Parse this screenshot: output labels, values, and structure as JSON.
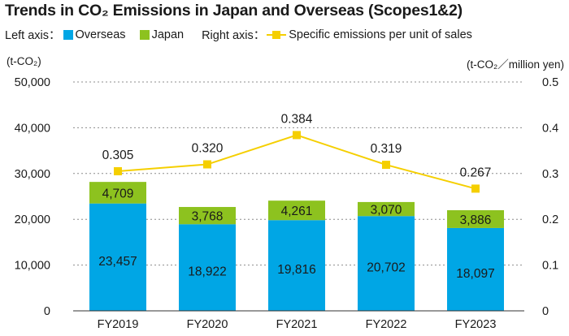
{
  "chart_data": {
    "type": "bar",
    "title": "Trends in CO₂ Emissions in Japan and Overseas (Scopes1&2)",
    "legend": {
      "left_axis_label": "Left axis：",
      "right_axis_label": "Right axis：",
      "placement": "top-left"
    },
    "categories": [
      "FY2019",
      "FY2020",
      "FY2021",
      "FY2022",
      "FY2023"
    ],
    "series": [
      {
        "name": "Overseas",
        "type": "bar",
        "stack": "total",
        "axis": "left",
        "color": "#00a6e5",
        "values": [
          23457,
          18922,
          19816,
          20702,
          18097
        ],
        "labels": [
          "23,457",
          "18,922",
          "19,816",
          "20,702",
          "18,097"
        ]
      },
      {
        "name": "Japan",
        "type": "bar",
        "stack": "total",
        "axis": "left",
        "color": "#8dc21f",
        "values": [
          4709,
          3768,
          4261,
          3070,
          3886
        ],
        "labels": [
          "4,709",
          "3,768",
          "4,261",
          "3,070",
          "3,886"
        ]
      },
      {
        "name": "Specific emissions per unit of sales",
        "type": "line",
        "axis": "right",
        "color": "#f5cf00",
        "values": [
          0.305,
          0.32,
          0.384,
          0.319,
          0.267
        ],
        "labels": [
          "0.305",
          "0.320",
          "0.384",
          "0.319",
          "0.267"
        ]
      }
    ],
    "y_left": {
      "unit": "(t-CO₂)",
      "ylim": [
        0,
        50000
      ],
      "ticks": [
        0,
        10000,
        20000,
        30000,
        40000,
        50000
      ],
      "tick_labels": [
        "0",
        "10,000",
        "20,000",
        "30,000",
        "40,000",
        "50,000"
      ]
    },
    "y_right": {
      "unit": "(t-CO₂／million yen)",
      "ylim": [
        0,
        0.5
      ],
      "ticks": [
        0,
        0.1,
        0.2,
        0.3,
        0.4,
        0.5
      ],
      "tick_labels": [
        "0",
        "0.1",
        "0.2",
        "0.3",
        "0.4",
        "0.5"
      ]
    },
    "grid": "horizontal-dotted"
  }
}
